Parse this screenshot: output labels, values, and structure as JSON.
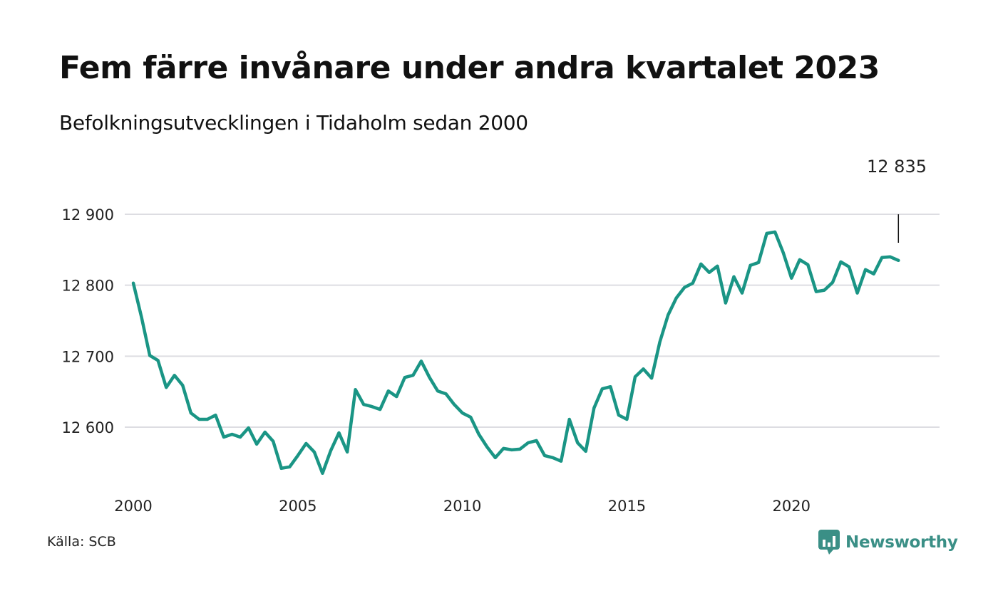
{
  "header": {
    "title": "Fem färre invånare under andra kvartalet 2023",
    "subtitle": "Befolkningsutvecklingen i Tidaholm sedan 2000"
  },
  "footer": {
    "source": "Källa: SCB",
    "brand": "Newsworthy",
    "brand_icon": "bar-chart-chat-icon"
  },
  "colors": {
    "line": "#1a9585",
    "grid": "#dddde2",
    "brand": "#3a8f86"
  },
  "chart_data": {
    "type": "line",
    "title": "Fem färre invånare under andra kvartalet 2023",
    "subtitle": "Befolkningsutvecklingen i Tidaholm sedan 2000",
    "xlabel": "",
    "ylabel": "",
    "xlim": [
      2000,
      2024.5
    ],
    "ylim": [
      12530,
      12900
    ],
    "x_ticks": [
      "2000",
      "2005",
      "2010",
      "2015",
      "2020"
    ],
    "y_ticks": [
      {
        "value": 12600,
        "label": "12 600"
      },
      {
        "value": 12700,
        "label": "12 700"
      },
      {
        "value": 12800,
        "label": "12 800"
      },
      {
        "value": 12900,
        "label": "12 900"
      }
    ],
    "grid": true,
    "end_label": {
      "x": 2023.25,
      "text": "12 835"
    },
    "series": [
      {
        "x": [
          2000.0,
          2000.25,
          2000.5,
          2000.75,
          2001.0,
          2001.25,
          2001.5,
          2001.75,
          2002.0,
          2002.25,
          2002.5,
          2002.75,
          2003.0,
          2003.25,
          2003.5,
          2003.75,
          2004.0,
          2004.25,
          2004.5,
          2004.75,
          2005.0,
          2005.25,
          2005.5,
          2005.75,
          2006.0,
          2006.25,
          2006.5,
          2006.75,
          2007.0,
          2007.25,
          2007.5,
          2007.75,
          2008.0,
          2008.25,
          2008.5,
          2008.75,
          2009.0,
          2009.25,
          2009.5,
          2009.75,
          2010.0,
          2010.25,
          2010.5,
          2010.75,
          2011.0,
          2011.25,
          2011.5,
          2011.75,
          2012.0,
          2012.25,
          2012.5,
          2012.75,
          2013.0,
          2013.25,
          2013.5,
          2013.75,
          2014.0,
          2014.25,
          2014.5,
          2014.75,
          2015.0,
          2015.25,
          2015.5,
          2015.75,
          2016.0,
          2016.25,
          2016.5,
          2016.75,
          2017.0,
          2017.25,
          2017.5,
          2017.75,
          2018.0,
          2018.25,
          2018.5,
          2018.75,
          2019.0,
          2019.25,
          2019.5,
          2019.75,
          2020.0,
          2020.25,
          2020.5,
          2020.75,
          2021.0,
          2021.25,
          2021.5,
          2021.75,
          2022.0,
          2022.25,
          2022.5,
          2022.75,
          2023.0,
          2023.25
        ],
        "values": [
          12803,
          12755,
          12701,
          12694,
          12656,
          12673,
          12659,
          12620,
          12611,
          12611,
          12617,
          12586,
          12590,
          12586,
          12599,
          12576,
          12593,
          12580,
          12542,
          12544,
          12560,
          12577,
          12565,
          12535,
          12567,
          12592,
          12565,
          12653,
          12632,
          12629,
          12625,
          12651,
          12643,
          12670,
          12673,
          12693,
          12670,
          12651,
          12647,
          12632,
          12620,
          12614,
          12590,
          12572,
          12557,
          12570,
          12568,
          12569,
          12578,
          12581,
          12560,
          12557,
          12552,
          12611,
          12578,
          12566,
          12627,
          12654,
          12657,
          12617,
          12611,
          12671,
          12682,
          12669,
          12720,
          12758,
          12782,
          12797,
          12803,
          12830,
          12818,
          12827,
          12775,
          12812,
          12789,
          12828,
          12832,
          12873,
          12875,
          12846,
          12810,
          12836,
          12829,
          12791,
          12793,
          12804,
          12833,
          12826,
          12789,
          12822,
          12816,
          12839,
          12840,
          12835
        ]
      }
    ]
  }
}
